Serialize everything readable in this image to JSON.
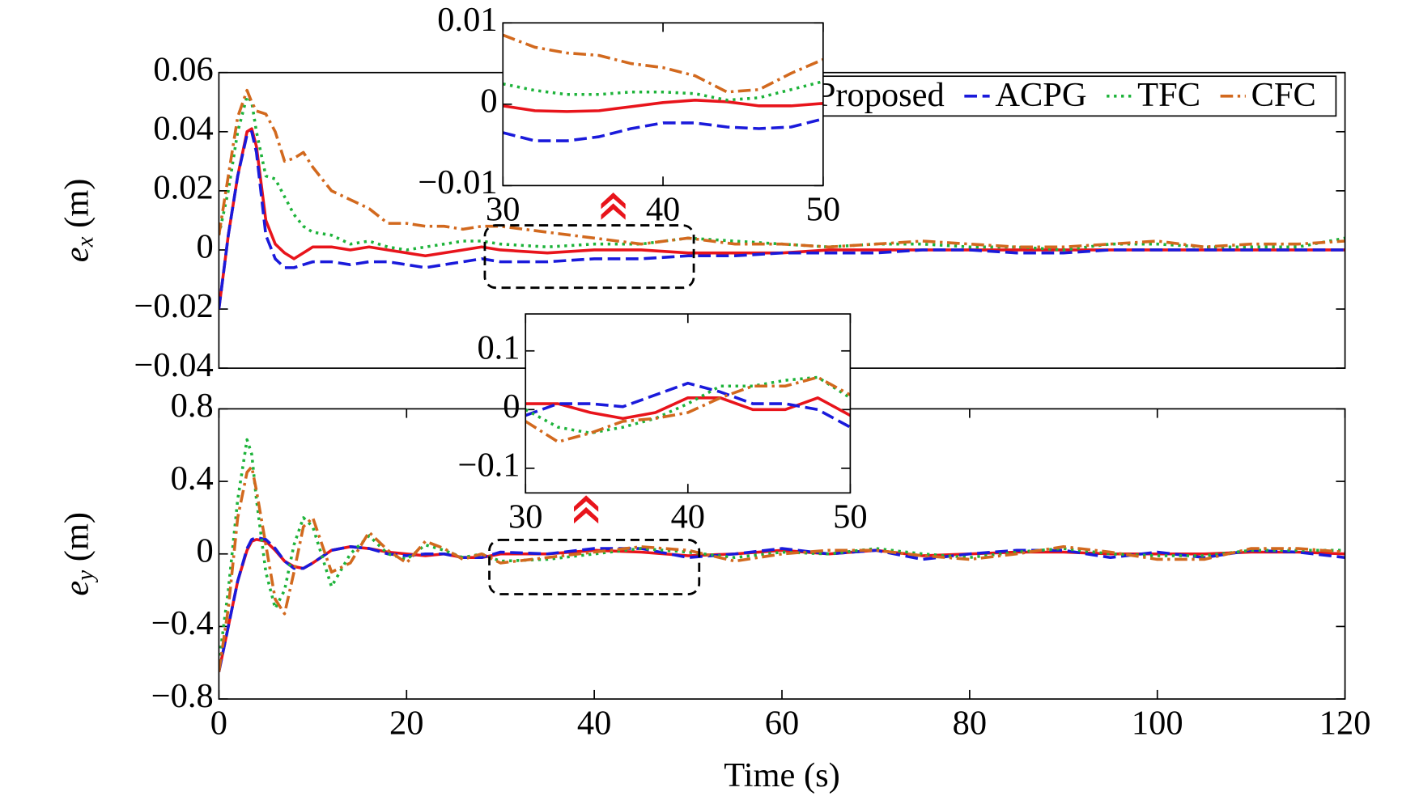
{
  "chart_data": [
    {
      "type": "line",
      "legend": "upper right",
      "ylabel": {
        "symbol": "e",
        "subscript": "x",
        "unit": "(m)"
      },
      "xlim": [
        0,
        120
      ],
      "ylim": [
        -0.04,
        0.06
      ],
      "yticks": [
        {
          "value": -0.04,
          "label": "−0.04"
        },
        {
          "value": -0.02,
          "label": "−0.02"
        },
        0,
        0.02,
        0.04,
        0.06
      ],
      "x": [
        0,
        1,
        2,
        3,
        3.5,
        4,
        5,
        6,
        7,
        8,
        9,
        10,
        12,
        14,
        16,
        18,
        20,
        22,
        24,
        26,
        28,
        30,
        35,
        40,
        45,
        50,
        55,
        60,
        65,
        70,
        75,
        80,
        85,
        90,
        95,
        100,
        105,
        110,
        115,
        120
      ],
      "series": [
        {
          "name": "Proposed",
          "color": "#e8141b",
          "style": "solid",
          "values": [
            -0.02,
            0.005,
            0.025,
            0.04,
            0.041,
            0.035,
            0.01,
            0.002,
            -0.001,
            -0.003,
            -0.001,
            0.001,
            0.001,
            0,
            0.001,
            0,
            -0.001,
            -0.002,
            -0.001,
            0,
            0.001,
            0,
            -0.001,
            0,
            0,
            -0.001,
            -0.001,
            -0.001,
            0,
            0,
            0,
            0,
            0,
            0,
            0,
            0,
            0,
            0,
            0,
            0
          ]
        },
        {
          "name": "ACPG",
          "color": "#1a1adb",
          "style": "dashed",
          "values": [
            -0.02,
            0.005,
            0.025,
            0.039,
            0.04,
            0.033,
            0.005,
            -0.003,
            -0.006,
            -0.006,
            -0.005,
            -0.004,
            -0.004,
            -0.005,
            -0.004,
            -0.004,
            -0.005,
            -0.006,
            -0.005,
            -0.004,
            -0.003,
            -0.004,
            -0.004,
            -0.003,
            -0.003,
            -0.002,
            -0.002,
            -0.001,
            -0.001,
            -0.001,
            0,
            0,
            -0.001,
            -0.001,
            0,
            0,
            0,
            0,
            0,
            0
          ]
        },
        {
          "name": "TFC",
          "color": "#1db33a",
          "style": "dotted",
          "values": [
            0.005,
            0.02,
            0.04,
            0.052,
            0.05,
            0.04,
            0.025,
            0.024,
            0.018,
            0.012,
            0.008,
            0.006,
            0.005,
            0.002,
            0.003,
            0.001,
            0,
            0.001,
            0.002,
            0.003,
            0.003,
            0.002,
            0.001,
            0.002,
            0.002,
            0.004,
            0.003,
            0.002,
            0.001,
            0.002,
            0.002,
            0.001,
            0.001,
            0,
            0.002,
            0.002,
            0.001,
            0.001,
            0.001,
            0.004
          ]
        },
        {
          "name": "CFC",
          "color": "#d2691e",
          "style": "dashdot",
          "values": [
            0.005,
            0.025,
            0.045,
            0.054,
            0.05,
            0.047,
            0.046,
            0.04,
            0.03,
            0.031,
            0.033,
            0.028,
            0.02,
            0.017,
            0.014,
            0.009,
            0.009,
            0.008,
            0.008,
            0.007,
            0.008,
            0.008,
            0.006,
            0.004,
            0.002,
            0.004,
            0.002,
            0.002,
            0.001,
            0.002,
            0.003,
            0.002,
            0.001,
            0.001,
            0.002,
            0.003,
            0.001,
            0.002,
            0.002,
            0.003
          ]
        }
      ]
    },
    {
      "type": "line",
      "xlim": [
        30,
        50
      ],
      "ylim": [
        -0.01,
        0.01
      ],
      "xticks": [
        30,
        40,
        50
      ],
      "yticks": [
        {
          "value": -0.01,
          "label": "−0.01"
        },
        0,
        0.01
      ],
      "x": [
        30,
        32,
        34,
        36,
        38,
        40,
        42,
        44,
        46,
        48,
        50
      ],
      "series": [
        {
          "color": "#e8141b",
          "style": "solid",
          "values": [
            -0.0002,
            -0.0008,
            -0.0009,
            -0.0008,
            -0.0003,
            0.0002,
            0.0005,
            0.0003,
            -0.0002,
            -0.0002,
            0.0001
          ]
        },
        {
          "color": "#1a1adb",
          "style": "dashed",
          "values": [
            -0.0035,
            -0.0045,
            -0.0045,
            -0.004,
            -0.003,
            -0.0023,
            -0.0023,
            -0.0028,
            -0.003,
            -0.0028,
            -0.0018
          ]
        },
        {
          "color": "#1db33a",
          "style": "dotted",
          "values": [
            0.0025,
            0.0017,
            0.0012,
            0.0012,
            0.0015,
            0.0015,
            0.0013,
            0.0005,
            0.0008,
            0.0018,
            0.0028
          ]
        },
        {
          "color": "#d2691e",
          "style": "dashdot",
          "values": [
            0.0085,
            0.007,
            0.0063,
            0.006,
            0.005,
            0.0045,
            0.0035,
            0.0015,
            0.0018,
            0.0038,
            0.0055
          ]
        }
      ]
    },
    {
      "type": "line",
      "ylabel": {
        "symbol": "e",
        "subscript": "y",
        "unit": "(m)"
      },
      "xlabel": "Time (s)",
      "xlim": [
        0,
        120
      ],
      "ylim": [
        -0.8,
        0.8
      ],
      "xticks": [
        0,
        20,
        40,
        60,
        80,
        100,
        120
      ],
      "yticks": [
        {
          "value": -0.8,
          "label": "−0.8"
        },
        {
          "value": -0.4,
          "label": "−0.4"
        },
        0,
        0.4,
        0.8
      ],
      "x": [
        0,
        1,
        2,
        3,
        3.5,
        4,
        5,
        6,
        7,
        8,
        9,
        10,
        12,
        14,
        16,
        18,
        20,
        22,
        24,
        26,
        28,
        30,
        35,
        40,
        45,
        50,
        55,
        60,
        65,
        70,
        75,
        80,
        85,
        90,
        95,
        100,
        105,
        110,
        115,
        120
      ],
      "series": [
        {
          "color": "#e8141b",
          "style": "solid",
          "values": [
            -0.65,
            -0.4,
            -0.15,
            0.02,
            0.07,
            0.08,
            0.07,
            0.02,
            -0.04,
            -0.07,
            -0.08,
            -0.05,
            0.02,
            0.04,
            0.03,
            0.01,
            0,
            -0.01,
            0,
            -0.02,
            -0.02,
            0,
            0,
            0.02,
            0.01,
            -0.01,
            0,
            0.02,
            0,
            0.02,
            -0.01,
            0,
            0.01,
            0.01,
            0,
            0,
            0,
            0.01,
            0.01,
            0
          ]
        },
        {
          "color": "#1a1adb",
          "style": "dashed",
          "values": [
            -0.65,
            -0.4,
            -0.15,
            0.03,
            0.08,
            0.09,
            0.08,
            0.03,
            -0.04,
            -0.08,
            -0.08,
            -0.05,
            0.02,
            0.04,
            0.03,
            0,
            -0.01,
            0,
            0,
            -0.02,
            -0.02,
            0.01,
            0,
            0.03,
            0.03,
            -0.02,
            0,
            0.03,
            0,
            0.02,
            -0.03,
            0,
            0.02,
            0.02,
            -0.02,
            0.01,
            -0.02,
            0.02,
            0.01,
            -0.02
          ]
        },
        {
          "color": "#1db33a",
          "style": "dotted",
          "values": [
            -0.6,
            -0.2,
            0.3,
            0.63,
            0.55,
            0.3,
            -0.1,
            -0.3,
            -0.2,
            0.05,
            0.2,
            0.15,
            -0.18,
            0,
            0.1,
            0,
            -0.03,
            0.05,
            0.02,
            -0.02,
            0,
            -0.04,
            -0.03,
            0,
            0.03,
            0.01,
            -0.02,
            0.01,
            0,
            0.03,
            0,
            -0.02,
            0.01,
            0.03,
            0,
            -0.01,
            -0.01,
            0.02,
            0.02,
            0.02
          ]
        },
        {
          "color": "#d2691e",
          "style": "dashdot",
          "values": [
            -0.65,
            -0.3,
            0.2,
            0.45,
            0.48,
            0.35,
            0.05,
            -0.25,
            -0.33,
            -0.1,
            0.15,
            0.2,
            -0.1,
            -0.05,
            0.12,
            0.02,
            -0.05,
            0.07,
            0.03,
            -0.03,
            0,
            -0.05,
            -0.02,
            0.01,
            0.04,
            0.02,
            -0.04,
            0,
            0.02,
            0.02,
            -0.01,
            -0.03,
            0,
            0.04,
            0.01,
            -0.03,
            -0.03,
            0.03,
            0.03,
            0.01
          ]
        }
      ]
    },
    {
      "type": "line",
      "xlim": [
        30,
        50
      ],
      "ylim": [
        -0.142,
        0.163
      ],
      "xticks": [
        30,
        40,
        50
      ],
      "yticks": [
        {
          "value": -0.1,
          "label": "−0.1"
        },
        0,
        0.1
      ],
      "x": [
        30,
        32,
        34,
        36,
        38,
        40,
        42,
        44,
        46,
        48,
        50
      ],
      "series": [
        {
          "color": "#e8141b",
          "style": "solid",
          "values": [
            0.01,
            0.01,
            -0.005,
            -0.015,
            -0.005,
            0.02,
            0.02,
            0,
            0,
            0.02,
            -0.01
          ]
        },
        {
          "color": "#1a1adb",
          "style": "dashed",
          "values": [
            -0.01,
            0.01,
            0.01,
            0.005,
            0.025,
            0.045,
            0.03,
            0.01,
            0.01,
            0,
            -0.03
          ]
        },
        {
          "color": "#1db33a",
          "style": "dotted",
          "values": [
            0,
            -0.03,
            -0.04,
            -0.03,
            -0.015,
            0.01,
            0.04,
            0.04,
            0.05,
            0.055,
            0.02
          ]
        },
        {
          "color": "#d2691e",
          "style": "dashdot",
          "values": [
            -0.02,
            -0.055,
            -0.04,
            -0.02,
            -0.015,
            -0.005,
            0.02,
            0.04,
            0.04,
            0.055,
            0.025
          ]
        }
      ]
    }
  ]
}
